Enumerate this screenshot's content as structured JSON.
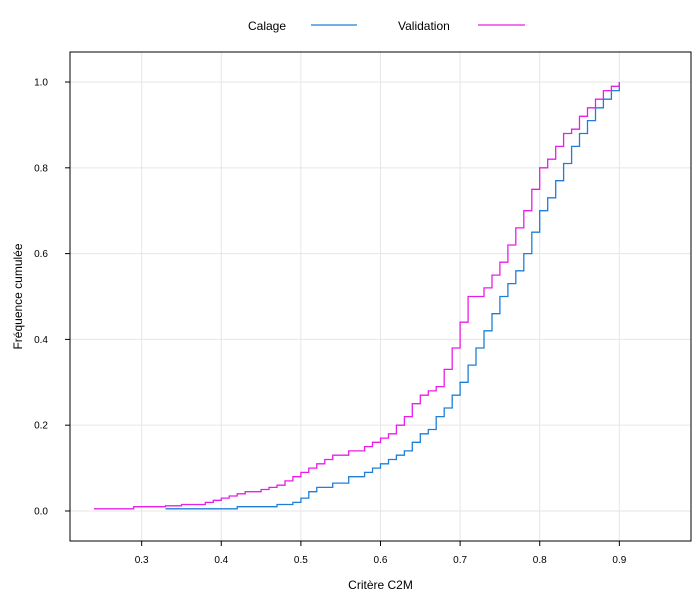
{
  "chart_data": {
    "type": "line",
    "step": true,
    "title": "",
    "xlabel": "Critère C2M",
    "ylabel": "Fréquence cumulée",
    "xlim": [
      0.21,
      0.99
    ],
    "ylim": [
      -0.07,
      1.07
    ],
    "x_ticks": [
      0.3,
      0.4,
      0.5,
      0.6,
      0.7,
      0.8,
      0.9
    ],
    "x_tick_labels": [
      "0.3",
      "0.4",
      "0.5",
      "0.6",
      "0.7",
      "0.8",
      "0.9"
    ],
    "y_ticks": [
      0.0,
      0.2,
      0.4,
      0.6,
      0.8,
      1.0
    ],
    "y_tick_labels": [
      "0.0",
      "0.2",
      "0.4",
      "0.6",
      "0.8",
      "1.0"
    ],
    "grid": true,
    "legend_position": "top",
    "series": [
      {
        "name": "Calage",
        "color": "#1f7fd8",
        "x": [
          0.33,
          0.42,
          0.47,
          0.49,
          0.5,
          0.51,
          0.52,
          0.54,
          0.56,
          0.58,
          0.59,
          0.6,
          0.61,
          0.62,
          0.63,
          0.64,
          0.65,
          0.66,
          0.67,
          0.68,
          0.69,
          0.7,
          0.71,
          0.72,
          0.73,
          0.74,
          0.75,
          0.76,
          0.77,
          0.78,
          0.79,
          0.8,
          0.81,
          0.82,
          0.83,
          0.84,
          0.85,
          0.86,
          0.87,
          0.88,
          0.89,
          0.9
        ],
        "y": [
          0.005,
          0.01,
          0.015,
          0.02,
          0.03,
          0.045,
          0.055,
          0.065,
          0.08,
          0.09,
          0.1,
          0.11,
          0.12,
          0.13,
          0.14,
          0.16,
          0.18,
          0.19,
          0.22,
          0.24,
          0.27,
          0.3,
          0.34,
          0.38,
          0.42,
          0.46,
          0.5,
          0.53,
          0.56,
          0.6,
          0.65,
          0.7,
          0.73,
          0.77,
          0.81,
          0.85,
          0.88,
          0.91,
          0.94,
          0.96,
          0.98,
          1.0
        ]
      },
      {
        "name": "Validation",
        "color": "#e81ee8",
        "x": [
          0.24,
          0.29,
          0.33,
          0.35,
          0.38,
          0.39,
          0.4,
          0.41,
          0.42,
          0.43,
          0.45,
          0.46,
          0.47,
          0.48,
          0.49,
          0.5,
          0.51,
          0.52,
          0.53,
          0.54,
          0.55,
          0.56,
          0.57,
          0.58,
          0.59,
          0.6,
          0.61,
          0.62,
          0.63,
          0.64,
          0.65,
          0.66,
          0.67,
          0.68,
          0.69,
          0.7,
          0.71,
          0.72,
          0.73,
          0.74,
          0.75,
          0.76,
          0.77,
          0.78,
          0.79,
          0.8,
          0.81,
          0.82,
          0.83,
          0.84,
          0.85,
          0.86,
          0.87,
          0.88,
          0.89,
          0.9
        ],
        "y": [
          0.005,
          0.01,
          0.012,
          0.015,
          0.02,
          0.025,
          0.03,
          0.035,
          0.04,
          0.045,
          0.05,
          0.055,
          0.06,
          0.07,
          0.08,
          0.09,
          0.1,
          0.11,
          0.12,
          0.13,
          0.13,
          0.14,
          0.14,
          0.15,
          0.16,
          0.17,
          0.18,
          0.2,
          0.22,
          0.25,
          0.27,
          0.28,
          0.29,
          0.33,
          0.38,
          0.44,
          0.5,
          0.5,
          0.52,
          0.55,
          0.58,
          0.62,
          0.66,
          0.7,
          0.75,
          0.8,
          0.82,
          0.85,
          0.88,
          0.89,
          0.92,
          0.94,
          0.96,
          0.98,
          0.99,
          1.0
        ]
      }
    ]
  }
}
